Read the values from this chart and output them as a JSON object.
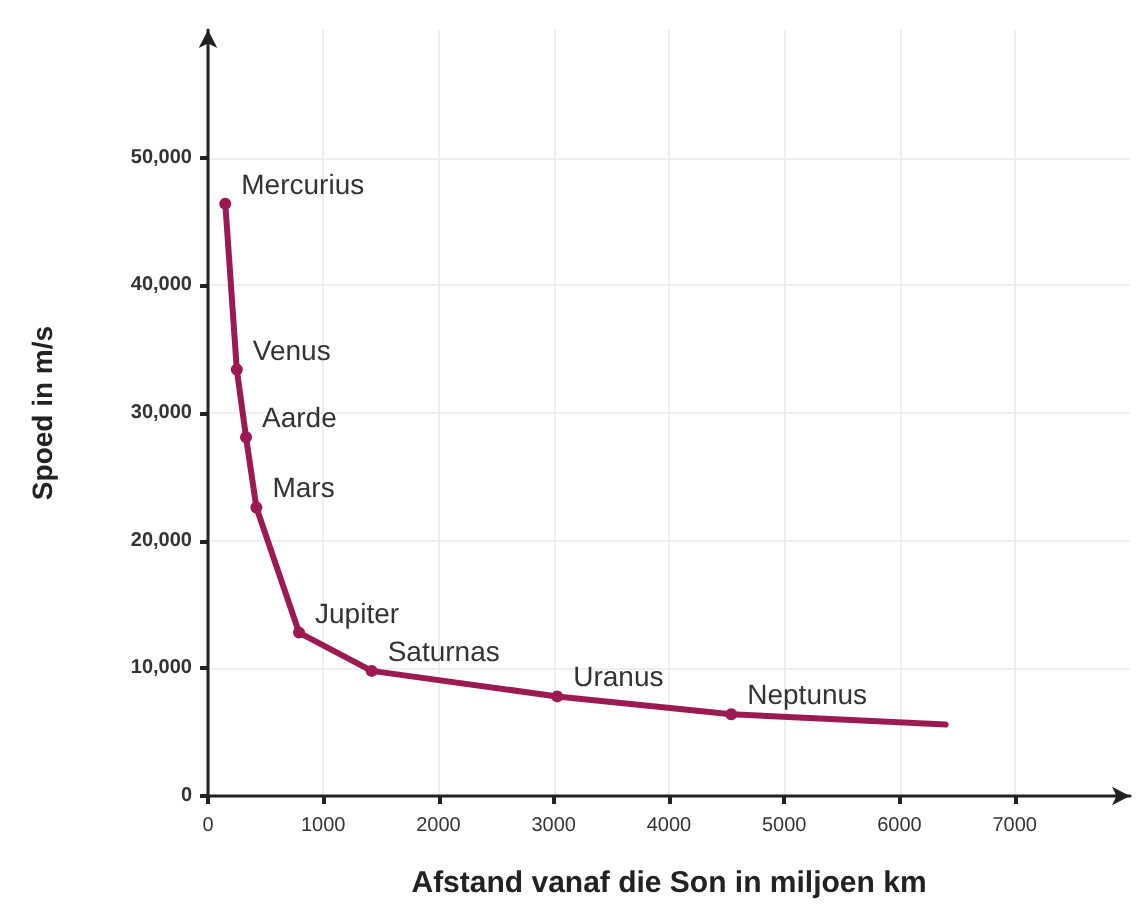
{
  "chart_data": {
    "type": "line",
    "xlabel": "Afstand vanaf die Son in miljoen km",
    "ylabel": "Spoed in m/s",
    "xlim": [
      0,
      8000
    ],
    "xticks": [
      0,
      1000,
      2000,
      3000,
      4000,
      5000,
      6000,
      7000
    ],
    "ylim": [
      0,
      60000
    ],
    "yticks": [
      {
        "value": 0,
        "label": "0"
      },
      {
        "value": 10000,
        "label": "10,000"
      },
      {
        "value": 20000,
        "label": "20,000"
      },
      {
        "value": 30000,
        "label": "30,000"
      },
      {
        "value": 40000,
        "label": "40,000"
      },
      {
        "value": 50000,
        "label": "50,000"
      }
    ],
    "grid": true,
    "series": [
      {
        "color": "#9c1a52",
        "marker": "circle",
        "x": [
          150,
          250,
          330,
          420,
          790,
          1420,
          3030,
          4540
        ],
        "values": [
          46400,
          33400,
          28100,
          22600,
          12800,
          9800,
          7800,
          6400
        ]
      },
      {
        "color": "#9c1a52",
        "marker": "none",
        "x": [
          4540,
          6400
        ],
        "values": [
          6400,
          5600
        ]
      }
    ],
    "annotations": [
      {
        "text": "Mercurius",
        "x": 150,
        "y": 46400
      },
      {
        "text": "Venus",
        "x": 250,
        "y": 33400
      },
      {
        "text": "Aarde",
        "x": 330,
        "y": 28100
      },
      {
        "text": "Mars",
        "x": 420,
        "y": 22600
      },
      {
        "text": "Jupiter",
        "x": 790,
        "y": 12800
      },
      {
        "text": "Saturnas",
        "x": 1420,
        "y": 9800
      },
      {
        "text": "Uranus",
        "x": 3030,
        "y": 7800
      },
      {
        "text": "Neptunus",
        "x": 4540,
        "y": 6400
      }
    ]
  }
}
